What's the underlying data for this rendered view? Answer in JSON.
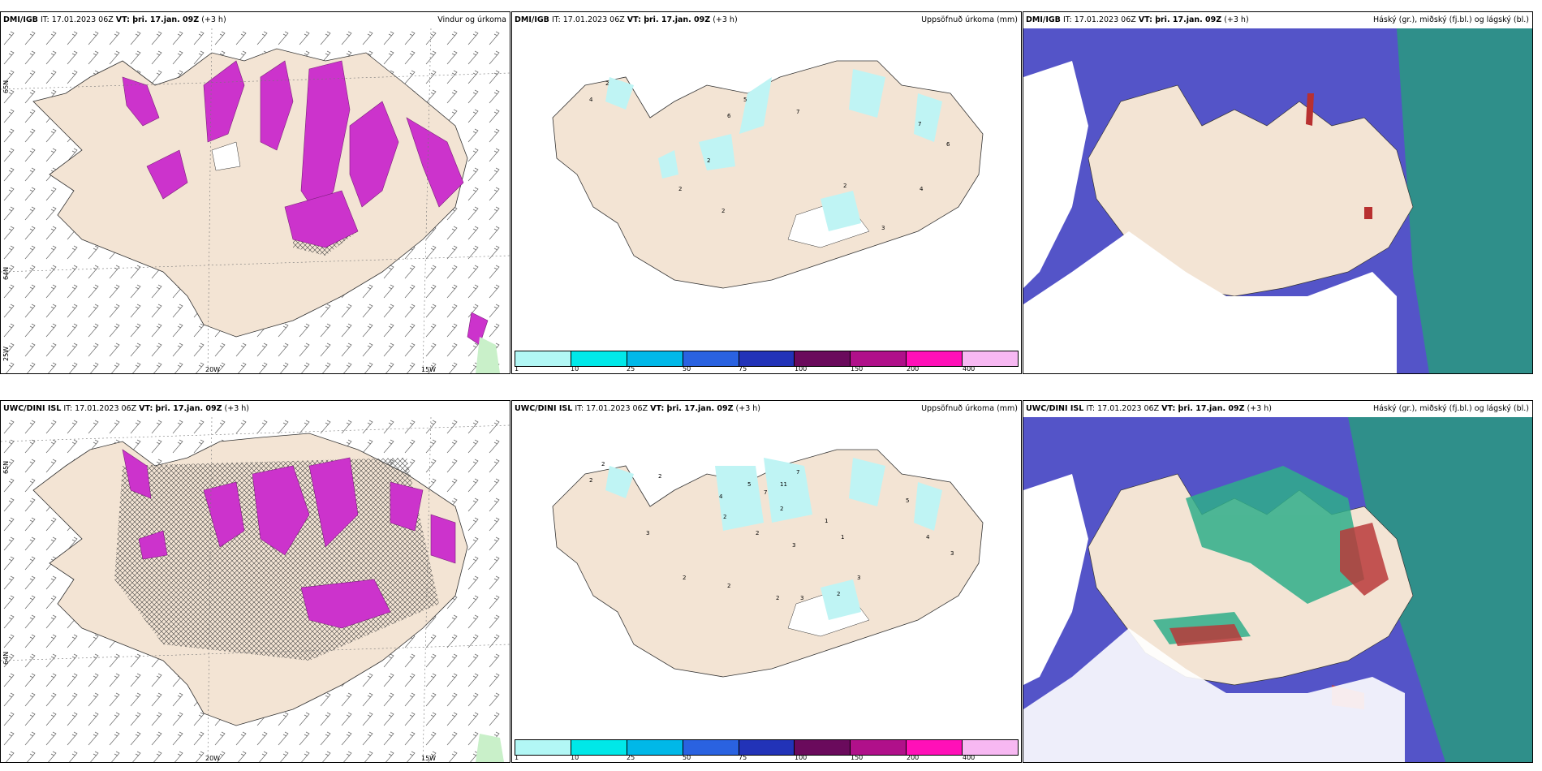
{
  "panels": [
    {
      "model": "DMI/IGB",
      "it": "IT: 17.01.2023 06Z",
      "vt": "VT: þri. 17.jan. 09Z",
      "lead": "(+3 h)",
      "title": "Vindur og úrkoma",
      "type": "wind"
    },
    {
      "model": "DMI/IGB",
      "it": "IT: 17.01.2023 06Z",
      "vt": "VT: þri. 17.jan. 09Z",
      "lead": "(+3 h)",
      "title": "Uppsöfnuð úrkoma (mm)",
      "type": "accum"
    },
    {
      "model": "DMI/IGB",
      "it": "IT: 17.01.2023 06Z",
      "vt": "VT: þri. 17.jan. 09Z",
      "lead": "(+3 h)",
      "title": "Háský (gr.), miðský (fj.bl.) og lágský (bl.)",
      "type": "cloud"
    },
    {
      "model": "UWC/DINI ISL",
      "it": "IT: 17.01.2023 06Z",
      "vt": "VT: þri. 17.jan. 09Z",
      "lead": "(+3 h)",
      "title": "",
      "type": "wind"
    },
    {
      "model": "UWC/DINI ISL",
      "it": "IT: 17.01.2023 06Z",
      "vt": "VT: þri. 17.jan. 09Z",
      "lead": "(+3 h)",
      "title": "Uppsöfnuð úrkoma (mm)",
      "type": "accum"
    },
    {
      "model": "UWC/DINI ISL",
      "it": "IT: 17.01.2023 06Z",
      "vt": "VT: þri. 17.jan. 09Z",
      "lead": "(+3 h)",
      "title": "Háský (gr.), miðský (fj.bl.) og lágský (bl.)",
      "type": "cloud"
    }
  ],
  "axis": {
    "lat_labels": [
      "65N",
      "64N"
    ],
    "lon_labels": [
      "20W",
      "15W"
    ],
    "extra_lon_label": "25W"
  },
  "scale": {
    "labels": [
      "1",
      "10",
      "25",
      "50",
      "75",
      "100",
      "150",
      "200",
      "400"
    ],
    "colors": [
      "#b2f7f5",
      "#00e8e8",
      "#00b8e8",
      "#2a62e0",
      "#2233b8",
      "#6a0a5c",
      "#b0108a",
      "#ff10b8",
      "#f7b8f2"
    ]
  },
  "colors": {
    "land": "#f3e4d4",
    "precip": "#cc33cc",
    "snow_blue": "#5454c8",
    "cloud_green": "#2fae8a",
    "accum_cyan": "#bff4f4"
  },
  "accum_values_top": [
    "2",
    "4",
    "2",
    "5",
    "6",
    "7",
    "2",
    "2",
    "2",
    "3",
    "4",
    "7",
    "6"
  ],
  "accum_values_bottom": [
    "2",
    "2",
    "2",
    "3",
    "4",
    "5",
    "7",
    "11",
    "7",
    "2",
    "2",
    "2",
    "1",
    "3",
    "1",
    "2",
    "2",
    "2",
    "3",
    "2",
    "5",
    "3",
    "4",
    "3"
  ]
}
